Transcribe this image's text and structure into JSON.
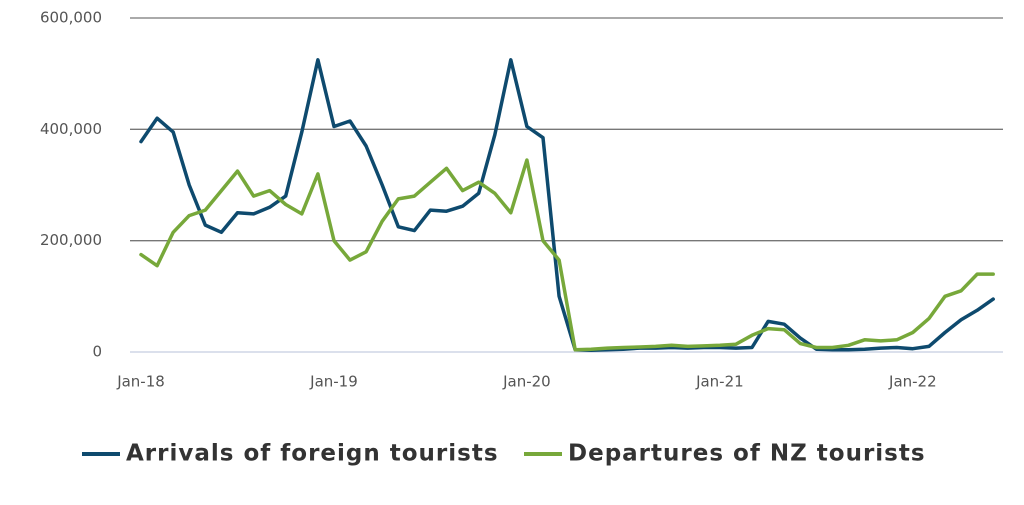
{
  "chart_data": {
    "type": "line",
    "categories": [
      "Jan-18",
      null,
      null,
      null,
      null,
      null,
      null,
      null,
      null,
      null,
      null,
      null,
      "Jan-19",
      null,
      null,
      null,
      null,
      null,
      null,
      null,
      null,
      null,
      null,
      null,
      "Jan-20",
      null,
      null,
      null,
      null,
      null,
      null,
      null,
      null,
      null,
      null,
      null,
      "Jan-21",
      null,
      null,
      null,
      null,
      null,
      null,
      null,
      null,
      null,
      null,
      null,
      "Jan-22",
      null,
      null,
      null,
      null,
      null
    ],
    "series": [
      {
        "name": "Arrivals of foreign tourists",
        "color": "#0e4a6e",
        "values": [
          378000,
          420000,
          395000,
          300000,
          228000,
          215000,
          250000,
          248000,
          260000,
          280000,
          395000,
          525000,
          405000,
          415000,
          370000,
          300000,
          225000,
          218000,
          255000,
          253000,
          262000,
          285000,
          390000,
          525000,
          405000,
          385000,
          100000,
          4000,
          3000,
          4000,
          5000,
          7000,
          7000,
          8000,
          7000,
          8000,
          8000,
          7000,
          8000,
          55000,
          50000,
          25000,
          5000,
          4000,
          4000,
          5000,
          7000,
          8000,
          6000,
          10000,
          35000,
          58000,
          75000,
          95000
        ]
      },
      {
        "name": "Departures of NZ tourists",
        "color": "#77a83a",
        "values": [
          175000,
          155000,
          215000,
          245000,
          255000,
          290000,
          325000,
          280000,
          290000,
          265000,
          248000,
          320000,
          200000,
          165000,
          180000,
          235000,
          275000,
          280000,
          305000,
          330000,
          290000,
          305000,
          285000,
          250000,
          345000,
          200000,
          165000,
          4000,
          5000,
          7000,
          8000,
          9000,
          10000,
          12000,
          10000,
          11000,
          12000,
          14000,
          30000,
          42000,
          40000,
          15000,
          8000,
          8000,
          12000,
          22000,
          20000,
          22000,
          35000,
          60000,
          100000,
          110000,
          140000,
          140000
        ]
      }
    ],
    "ylim": [
      0,
      600000
    ],
    "yticks": [
      0,
      {
        "value": 200000,
        "label": "200,000"
      },
      {
        "value": 400000,
        "label": "400,000"
      },
      {
        "value": 600000,
        "label": "600,000"
      }
    ],
    "grid": true,
    "legend": "bottom"
  }
}
